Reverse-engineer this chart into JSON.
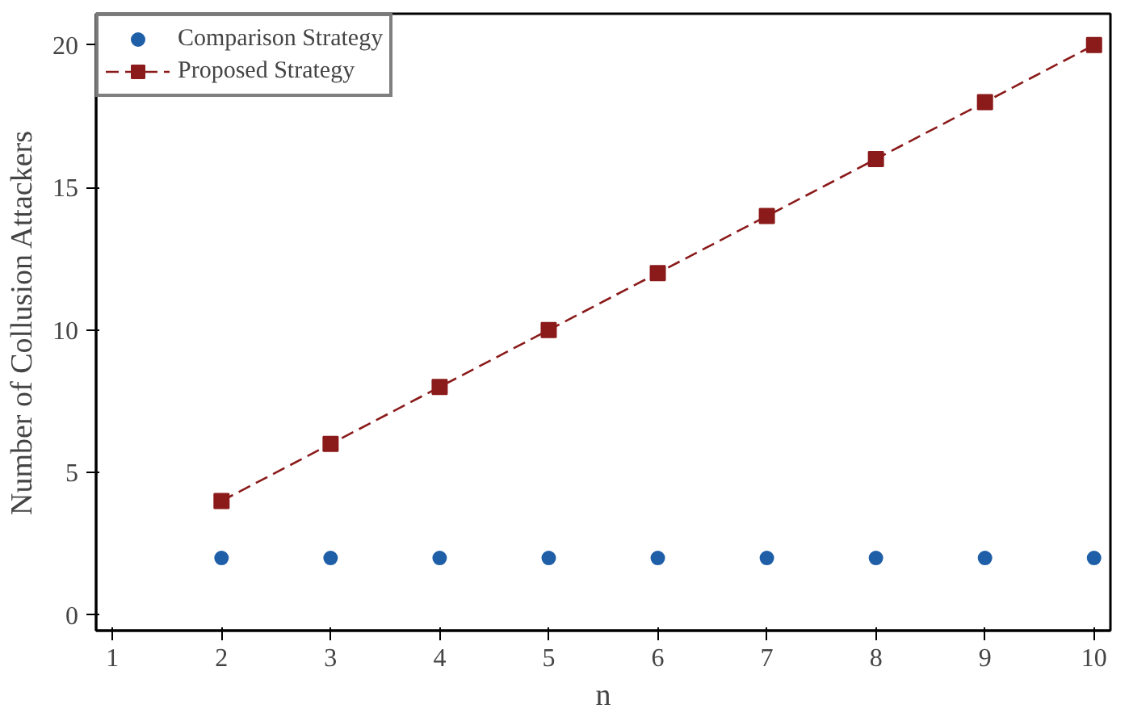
{
  "chart_data": {
    "type": "line",
    "xlabel": "n",
    "ylabel": "Number of Collusion Attackers",
    "x": [
      2,
      3,
      4,
      5,
      6,
      7,
      8,
      9,
      10
    ],
    "series": [
      {
        "name": "Comparison Strategy",
        "type": "scatter",
        "color": "#1f5fa8",
        "marker": "circle",
        "values": [
          2,
          2,
          2,
          2,
          2,
          2,
          2,
          2,
          2
        ]
      },
      {
        "name": "Proposed Strategy",
        "color": "#8b1a1a",
        "marker": "square",
        "line_style": "dashed",
        "values": [
          4,
          6,
          8,
          10,
          12,
          14,
          16,
          18,
          20
        ]
      }
    ],
    "xlim": [
      0.85,
      10.15
    ],
    "xticks": [
      1,
      2,
      3,
      4,
      5,
      6,
      7,
      8,
      9,
      10
    ],
    "ylim": [
      -0.55,
      21.1
    ],
    "yticks": [
      0,
      5,
      10,
      15,
      20
    ],
    "grid": false,
    "legend": "top left"
  }
}
